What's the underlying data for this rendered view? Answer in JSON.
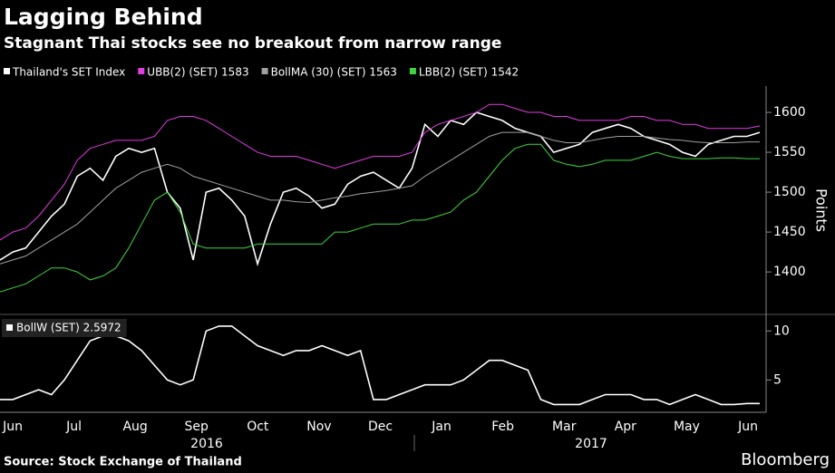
{
  "title": "Lagging Behind",
  "subtitle": "Stagnant Thai stocks see no breakout from narrow range",
  "source": "Source: Stock Exchange of Thailand",
  "brand": "Bloomberg",
  "chart_data": [
    {
      "type": "line",
      "y_label": "Points",
      "ylim": [
        1349,
        1633
      ],
      "yticks": [
        1400,
        1450,
        1500,
        1550,
        1600
      ],
      "series": [
        {
          "name": "Thailand's SET Index",
          "color": "#ffffff",
          "values": [
            1415,
            1425,
            1430,
            1450,
            1470,
            1485,
            1520,
            1530,
            1515,
            1545,
            1555,
            1550,
            1555,
            1500,
            1480,
            1415,
            1500,
            1505,
            1490,
            1470,
            1410,
            1460,
            1500,
            1505,
            1495,
            1480,
            1485,
            1510,
            1520,
            1525,
            1515,
            1505,
            1530,
            1585,
            1570,
            1590,
            1585,
            1600,
            1595,
            1590,
            1580,
            1575,
            1570,
            1550,
            1555,
            1560,
            1575,
            1580,
            1585,
            1580,
            1570,
            1565,
            1560,
            1550,
            1545,
            1560,
            1565,
            1570,
            1570,
            1575
          ]
        },
        {
          "name": "UBB(2) (SET) 1583",
          "color": "#e03ce0",
          "values": [
            1440,
            1450,
            1455,
            1470,
            1490,
            1510,
            1540,
            1555,
            1560,
            1565,
            1565,
            1565,
            1570,
            1590,
            1595,
            1595,
            1590,
            1580,
            1570,
            1560,
            1550,
            1545,
            1545,
            1545,
            1540,
            1535,
            1530,
            1535,
            1540,
            1545,
            1545,
            1545,
            1550,
            1575,
            1585,
            1590,
            1595,
            1600,
            1610,
            1610,
            1605,
            1600,
            1600,
            1595,
            1595,
            1590,
            1590,
            1590,
            1590,
            1595,
            1595,
            1590,
            1590,
            1585,
            1585,
            1580,
            1580,
            1580,
            1580,
            1583
          ]
        },
        {
          "name": "BollMA (30) (SET) 1563",
          "color": "#a0a0a0",
          "values": [
            1410,
            1415,
            1420,
            1430,
            1440,
            1450,
            1460,
            1475,
            1490,
            1505,
            1515,
            1525,
            1530,
            1535,
            1530,
            1520,
            1515,
            1510,
            1505,
            1500,
            1495,
            1490,
            1490,
            1488,
            1487,
            1490,
            1493,
            1495,
            1498,
            1500,
            1502,
            1505,
            1508,
            1520,
            1530,
            1540,
            1550,
            1560,
            1570,
            1575,
            1575,
            1575,
            1570,
            1565,
            1562,
            1562,
            1565,
            1568,
            1570,
            1570,
            1570,
            1568,
            1566,
            1565,
            1563,
            1562,
            1562,
            1562,
            1563,
            1563
          ]
        },
        {
          "name": "LBB(2) (SET) 1542",
          "color": "#3ed63e",
          "values": [
            1375,
            1380,
            1385,
            1395,
            1405,
            1405,
            1400,
            1390,
            1395,
            1405,
            1430,
            1460,
            1490,
            1500,
            1475,
            1435,
            1430,
            1430,
            1430,
            1430,
            1435,
            1435,
            1435,
            1435,
            1435,
            1435,
            1450,
            1450,
            1455,
            1460,
            1460,
            1460,
            1465,
            1465,
            1470,
            1475,
            1490,
            1500,
            1520,
            1540,
            1555,
            1560,
            1560,
            1540,
            1535,
            1532,
            1535,
            1540,
            1540,
            1540,
            1545,
            1550,
            1545,
            1542,
            1542,
            1542,
            1543,
            1543,
            1542,
            1542
          ]
        }
      ]
    },
    {
      "type": "line",
      "ylim": [
        1.7,
        11.6
      ],
      "yticks": [
        5,
        10
      ],
      "x_labels": [
        "Jun",
        "Jul",
        "Aug",
        "Sep",
        "Oct",
        "Nov",
        "Dec",
        "Jan",
        "Feb",
        "Mar",
        "Apr",
        "May",
        "Jun"
      ],
      "years": [
        "2016",
        "2017"
      ],
      "series": [
        {
          "name": "BollW (SET) 2.5972",
          "color": "#ffffff",
          "values": [
            3,
            3,
            3.5,
            4,
            3.5,
            5,
            7,
            9,
            9.5,
            9.5,
            9,
            8,
            6.5,
            5,
            4.5,
            5,
            10,
            10.5,
            10.5,
            9.5,
            8.5,
            8,
            7.5,
            8,
            8,
            8.5,
            8,
            7.5,
            8,
            3,
            3,
            3.5,
            4,
            4.5,
            4.5,
            4.5,
            5,
            6,
            7,
            7,
            6.5,
            6,
            3,
            2.5,
            2.5,
            2.5,
            3,
            3.5,
            3.5,
            3.5,
            3,
            3,
            2.5,
            3,
            3.5,
            3,
            2.5,
            2.5,
            2.6,
            2.6
          ]
        }
      ]
    }
  ]
}
